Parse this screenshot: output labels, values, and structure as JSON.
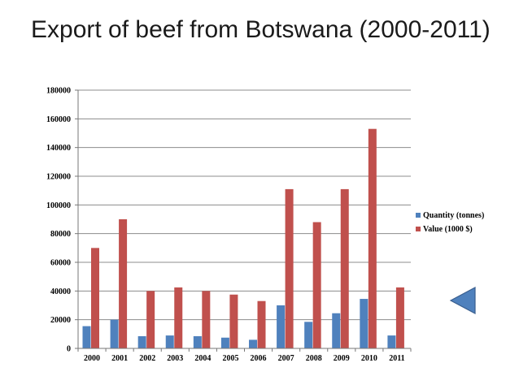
{
  "slide": {
    "title": "Export of beef from Botswana (2000-2011)"
  },
  "navigation": {
    "back_icon": "left-triangle-icon"
  },
  "colors": {
    "quantity": "#4F81BD",
    "value": "#C0504D",
    "gridline": "#8c8c8c",
    "nav_fill": "#4F81BD"
  },
  "chart_data": {
    "type": "bar",
    "title": "",
    "xlabel": "",
    "ylabel": "",
    "categories": [
      "2000",
      "2001",
      "2002",
      "2003",
      "2004",
      "2005",
      "2006",
      "2007",
      "2008",
      "2009",
      "2010",
      "2011"
    ],
    "series": [
      {
        "name": "Quantity (tonnes)",
        "values": [
          15500,
          20000,
          8500,
          9000,
          8500,
          7500,
          6000,
          30000,
          18500,
          24500,
          34500,
          9000
        ]
      },
      {
        "name": "Value (1000 $)",
        "values": [
          70000,
          90000,
          40000,
          42500,
          40000,
          37500,
          33000,
          111000,
          88000,
          111000,
          153000,
          42500
        ]
      }
    ],
    "ylim": [
      0,
      180000
    ],
    "yticks": [
      "0",
      "20000",
      "40000",
      "60000",
      "80000",
      "100000",
      "120000",
      "140000",
      "160000",
      "180000"
    ],
    "grid": true,
    "legend_position": "right"
  }
}
